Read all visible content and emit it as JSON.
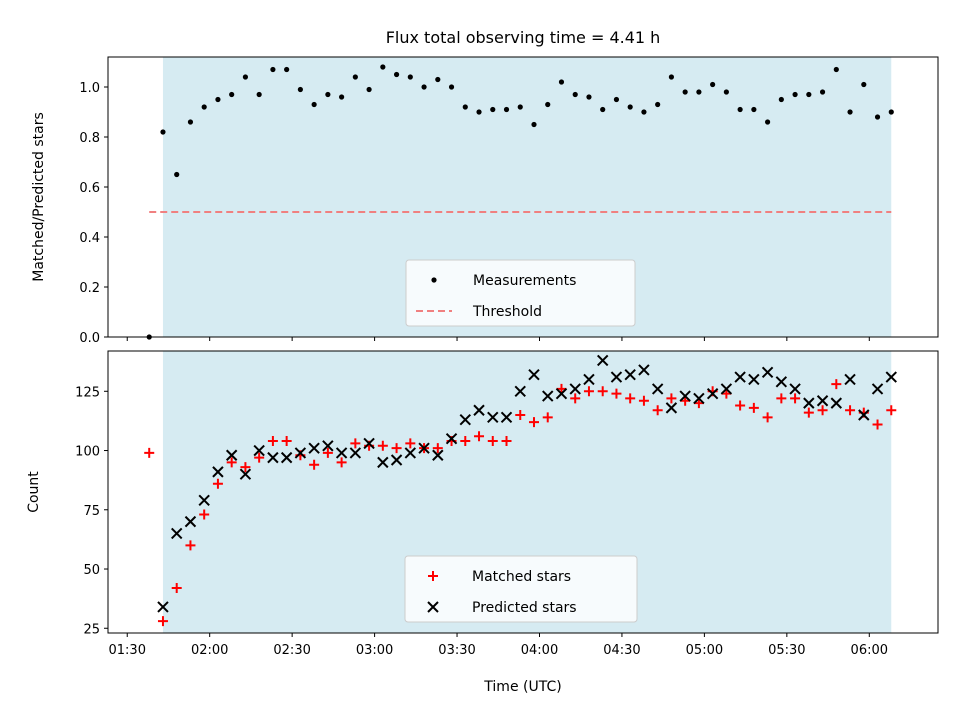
{
  "chart_data": [
    {
      "type": "scatter",
      "title": "Flux total observing time = 4.41 h",
      "xlabel": "",
      "ylabel": "Matched/Predicted stars",
      "xlim": [
        "01:23",
        "06:25"
      ],
      "ylim": [
        0,
        1.12
      ],
      "x_ticks": [
        "01:30",
        "02:00",
        "02:30",
        "03:00",
        "03:30",
        "04:00",
        "04:30",
        "05:00",
        "05:30",
        "06:00"
      ],
      "y_ticks": [
        "0.0",
        "0.2",
        "0.4",
        "0.6",
        "0.8",
        "1.0"
      ],
      "shaded_region": {
        "from": "01:43",
        "to": "06:08",
        "color": "#add8e6"
      },
      "threshold": {
        "name": "Threshold",
        "value": 0.5,
        "from": "01:38",
        "to": "06:08",
        "color": "#f08080",
        "style": "dashed"
      },
      "series": [
        {
          "name": "Measurements",
          "color": "#000000",
          "marker": "dot",
          "points": [
            [
              "01:38",
              0.0
            ],
            [
              "01:43",
              0.82
            ],
            [
              "01:48",
              0.65
            ],
            [
              "01:53",
              0.86
            ],
            [
              "01:58",
              0.92
            ],
            [
              "02:03",
              0.95
            ],
            [
              "02:08",
              0.97
            ],
            [
              "02:13",
              1.04
            ],
            [
              "02:18",
              0.97
            ],
            [
              "02:23",
              1.07
            ],
            [
              "02:28",
              1.07
            ],
            [
              "02:33",
              0.99
            ],
            [
              "02:38",
              0.93
            ],
            [
              "02:43",
              0.97
            ],
            [
              "02:48",
              0.96
            ],
            [
              "02:53",
              1.04
            ],
            [
              "02:58",
              0.99
            ],
            [
              "03:03",
              1.08
            ],
            [
              "03:08",
              1.05
            ],
            [
              "03:13",
              1.04
            ],
            [
              "03:18",
              1.0
            ],
            [
              "03:23",
              1.03
            ],
            [
              "03:28",
              1.0
            ],
            [
              "03:33",
              0.92
            ],
            [
              "03:38",
              0.9
            ],
            [
              "03:43",
              0.91
            ],
            [
              "03:48",
              0.91
            ],
            [
              "03:53",
              0.92
            ],
            [
              "03:58",
              0.85
            ],
            [
              "04:03",
              0.93
            ],
            [
              "04:08",
              1.02
            ],
            [
              "04:13",
              0.97
            ],
            [
              "04:18",
              0.96
            ],
            [
              "04:23",
              0.91
            ],
            [
              "04:28",
              0.95
            ],
            [
              "04:33",
              0.92
            ],
            [
              "04:38",
              0.9
            ],
            [
              "04:43",
              0.93
            ],
            [
              "04:48",
              1.04
            ],
            [
              "04:53",
              0.98
            ],
            [
              "04:58",
              0.98
            ],
            [
              "05:03",
              1.01
            ],
            [
              "05:08",
              0.98
            ],
            [
              "05:13",
              0.91
            ],
            [
              "05:18",
              0.91
            ],
            [
              "05:23",
              0.86
            ],
            [
              "05:28",
              0.95
            ],
            [
              "05:33",
              0.97
            ],
            [
              "05:38",
              0.97
            ],
            [
              "05:43",
              0.98
            ],
            [
              "05:48",
              1.07
            ],
            [
              "05:53",
              0.9
            ],
            [
              "05:58",
              1.01
            ],
            [
              "06:03",
              0.88
            ],
            [
              "06:08",
              0.9
            ]
          ]
        }
      ],
      "legend": [
        "Measurements",
        "Threshold"
      ],
      "legend_position": "lower-center",
      "grid": false
    },
    {
      "type": "scatter",
      "title": "",
      "xlabel": "Time (UTC)",
      "ylabel": "Count",
      "xlim": [
        "01:23",
        "06:25"
      ],
      "ylim": [
        23,
        142
      ],
      "x_ticks": [
        "01:30",
        "02:00",
        "02:30",
        "03:00",
        "03:30",
        "04:00",
        "04:30",
        "05:00",
        "05:30",
        "06:00"
      ],
      "y_ticks": [
        "25",
        "50",
        "75",
        "100",
        "125"
      ],
      "shaded_region": {
        "from": "01:43",
        "to": "06:08",
        "color": "#add8e6"
      },
      "series": [
        {
          "name": "Matched stars",
          "color": "#ff0000",
          "marker": "plus",
          "points": [
            [
              "01:38",
              99
            ],
            [
              "01:43",
              28
            ],
            [
              "01:48",
              42
            ],
            [
              "01:53",
              60
            ],
            [
              "01:58",
              73
            ],
            [
              "02:03",
              86
            ],
            [
              "02:08",
              95
            ],
            [
              "02:13",
              93
            ],
            [
              "02:18",
              97
            ],
            [
              "02:23",
              104
            ],
            [
              "02:28",
              104
            ],
            [
              "02:33",
              98
            ],
            [
              "02:38",
              94
            ],
            [
              "02:43",
              99
            ],
            [
              "02:48",
              95
            ],
            [
              "02:53",
              103
            ],
            [
              "02:58",
              102
            ],
            [
              "03:03",
              102
            ],
            [
              "03:08",
              101
            ],
            [
              "03:13",
              103
            ],
            [
              "03:18",
              101
            ],
            [
              "03:23",
              101
            ],
            [
              "03:28",
              104
            ],
            [
              "03:33",
              104
            ],
            [
              "03:38",
              106
            ],
            [
              "03:43",
              104
            ],
            [
              "03:48",
              104
            ],
            [
              "03:53",
              115
            ],
            [
              "03:58",
              112
            ],
            [
              "04:03",
              114
            ],
            [
              "04:08",
              126
            ],
            [
              "04:13",
              122
            ],
            [
              "04:18",
              125
            ],
            [
              "04:23",
              125
            ],
            [
              "04:28",
              124
            ],
            [
              "04:33",
              122
            ],
            [
              "04:38",
              121
            ],
            [
              "04:43",
              117
            ],
            [
              "04:48",
              122
            ],
            [
              "04:53",
              121
            ],
            [
              "04:58",
              120
            ],
            [
              "05:03",
              125
            ],
            [
              "05:08",
              124
            ],
            [
              "05:13",
              119
            ],
            [
              "05:18",
              118
            ],
            [
              "05:23",
              114
            ],
            [
              "05:28",
              122
            ],
            [
              "05:33",
              122
            ],
            [
              "05:38",
              116
            ],
            [
              "05:43",
              117
            ],
            [
              "05:48",
              128
            ],
            [
              "05:53",
              117
            ],
            [
              "05:58",
              116
            ],
            [
              "06:03",
              111
            ],
            [
              "06:08",
              117
            ]
          ]
        },
        {
          "name": "Predicted stars",
          "color": "#000000",
          "marker": "x",
          "points": [
            [
              "01:43",
              34
            ],
            [
              "01:48",
              65
            ],
            [
              "01:53",
              70
            ],
            [
              "01:58",
              79
            ],
            [
              "02:03",
              91
            ],
            [
              "02:08",
              98
            ],
            [
              "02:13",
              90
            ],
            [
              "02:18",
              100
            ],
            [
              "02:23",
              97
            ],
            [
              "02:28",
              97
            ],
            [
              "02:33",
              99
            ],
            [
              "02:38",
              101
            ],
            [
              "02:43",
              102
            ],
            [
              "02:48",
              99
            ],
            [
              "02:53",
              99
            ],
            [
              "02:58",
              103
            ],
            [
              "03:03",
              95
            ],
            [
              "03:08",
              96
            ],
            [
              "03:13",
              99
            ],
            [
              "03:18",
              101
            ],
            [
              "03:23",
              98
            ],
            [
              "03:28",
              105
            ],
            [
              "03:33",
              113
            ],
            [
              "03:38",
              117
            ],
            [
              "03:43",
              114
            ],
            [
              "03:48",
              114
            ],
            [
              "03:53",
              125
            ],
            [
              "03:58",
              132
            ],
            [
              "04:03",
              123
            ],
            [
              "04:08",
              124
            ],
            [
              "04:13",
              126
            ],
            [
              "04:18",
              130
            ],
            [
              "04:23",
              138
            ],
            [
              "04:28",
              131
            ],
            [
              "04:33",
              132
            ],
            [
              "04:38",
              134
            ],
            [
              "04:43",
              126
            ],
            [
              "04:48",
              118
            ],
            [
              "04:53",
              123
            ],
            [
              "04:58",
              122
            ],
            [
              "05:03",
              124
            ],
            [
              "05:08",
              126
            ],
            [
              "05:13",
              131
            ],
            [
              "05:18",
              130
            ],
            [
              "05:23",
              133
            ],
            [
              "05:28",
              129
            ],
            [
              "05:33",
              126
            ],
            [
              "05:38",
              120
            ],
            [
              "05:43",
              121
            ],
            [
              "05:48",
              120
            ],
            [
              "05:53",
              130
            ],
            [
              "05:58",
              115
            ],
            [
              "06:03",
              126
            ],
            [
              "06:08",
              131
            ]
          ]
        }
      ],
      "legend": [
        "Matched stars",
        "Predicted stars"
      ],
      "legend_position": "lower-center",
      "grid": false
    }
  ]
}
